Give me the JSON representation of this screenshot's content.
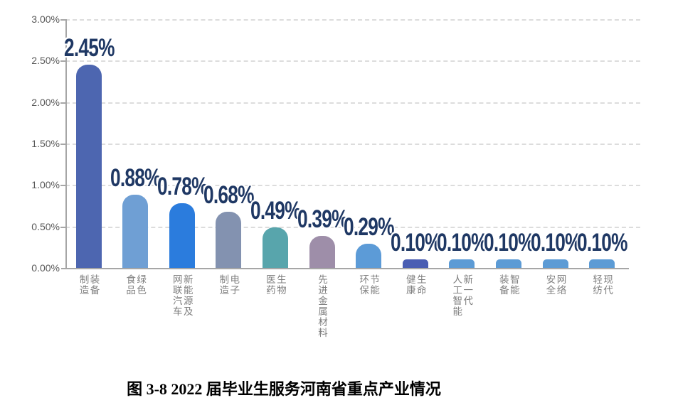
{
  "chart_data": {
    "type": "bar",
    "title": "图 3-8  2022 届毕业生服务河南省重点产业情况",
    "categories": [
      "装备\n制造",
      "绿色\n食品",
      "新能源及\n网联汽车",
      "电子\n制造",
      "生物\n医药",
      "先进金属材料",
      "节能\n环保",
      "生命\n健康",
      "新一代\n人工智能",
      "智能\n装备",
      "网络\n安全",
      "现代\n轻纺"
    ],
    "values": [
      2.45,
      0.88,
      0.78,
      0.68,
      0.49,
      0.39,
      0.29,
      0.1,
      0.1,
      0.1,
      0.1,
      0.1
    ],
    "data_labels": [
      "2.45%",
      "0.88%",
      "0.78%",
      "0.68%",
      "0.49%",
      "0.39%",
      "0.29%",
      "0.10%",
      "0.10%",
      "0.10%",
      "0.10%",
      "0.10%"
    ],
    "bar_colors": [
      "#4d66b0",
      "#6f9fd4",
      "#2b7cdd",
      "#8392b0",
      "#58a5ac",
      "#9e8ea9",
      "#5c9bd7",
      "#4a5eb3",
      "#5c9bd5",
      "#5c9bd5",
      "#5c9bd5",
      "#5c9bd5"
    ],
    "xlabel": "",
    "ylabel": "",
    "ylim": [
      0,
      3.0
    ],
    "ytick_step": 0.5,
    "ytick_labels": [
      "0.00%",
      "0.50%",
      "1.00%",
      "1.50%",
      "2.00%",
      "2.50%",
      "3.00%"
    ],
    "grid": "horizontal-dashed",
    "legend": "none"
  },
  "caption": {
    "full": "图 3-8  2022 届毕业生服务河南省重点产业情况"
  },
  "colors": {
    "value_label": "#1f3864",
    "axis_line": "#a6a6a6",
    "gridline": "#dcdcdc",
    "ytick_text": "#595959",
    "xtick_text": "#7f7f7f",
    "background": "#ffffff"
  }
}
